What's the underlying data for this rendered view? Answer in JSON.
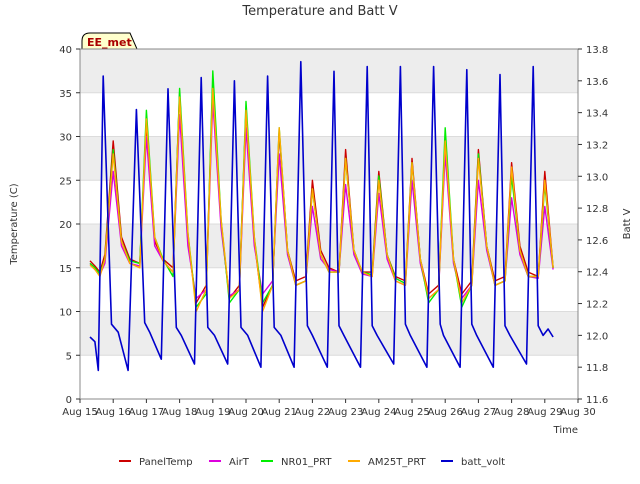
{
  "chart_data": {
    "type": "line",
    "title": "Temperature and Batt V",
    "station_label": "EE_met",
    "xlabel": "Time",
    "ylabel": "Temperature (C)",
    "y2label": "Batt V",
    "xlim": [
      15,
      30
    ],
    "ylim": [
      0,
      40
    ],
    "y2lim": [
      11.6,
      13.8
    ],
    "x_ticks": [
      15,
      16,
      17,
      18,
      19,
      20,
      21,
      22,
      23,
      24,
      25,
      26,
      27,
      28,
      29,
      30
    ],
    "x_tick_labels": [
      "Aug 15",
      "Aug 16",
      "Aug 17",
      "Aug 18",
      "Aug 19",
      "Aug 20",
      "Aug 21",
      "Aug 22",
      "Aug 23",
      "Aug 24",
      "Aug 25",
      "Aug 26",
      "Aug 27",
      "Aug 28",
      "Aug 29",
      "Aug 30"
    ],
    "y_ticks": [
      0,
      5,
      10,
      15,
      20,
      25,
      30,
      35,
      40
    ],
    "y2_ticks": [
      11.6,
      11.8,
      12.0,
      12.2,
      12.4,
      12.6,
      12.8,
      13.0,
      13.2,
      13.4,
      13.6,
      13.8
    ],
    "y2_tick_labels": [
      "11.6",
      "11.8",
      "12.0",
      "12.2",
      "12.4",
      "12.6",
      "12.8",
      "13.0",
      "13.2",
      "13.4",
      "13.6",
      "13.8"
    ],
    "legend_position": "bottom",
    "series": [
      {
        "name": "PanelTemp",
        "color": "#cc0000",
        "axis": "left",
        "x": [
          15.3,
          15.45,
          15.6,
          15.75,
          16.0,
          16.25,
          16.5,
          16.8,
          17.0,
          17.25,
          17.5,
          17.8,
          18.0,
          18.25,
          18.5,
          18.8,
          19.0,
          19.25,
          19.5,
          19.8,
          20.0,
          20.25,
          20.5,
          20.8,
          21.0,
          21.25,
          21.5,
          21.8,
          22.0,
          22.25,
          22.5,
          22.8,
          23.0,
          23.25,
          23.5,
          23.8,
          24.0,
          24.25,
          24.5,
          24.8,
          25.0,
          25.25,
          25.5,
          25.8,
          26.0,
          26.25,
          26.5,
          26.8,
          27.0,
          27.25,
          27.5,
          27.8,
          28.0,
          28.25,
          28.5,
          28.8,
          29.0,
          29.25
        ],
        "y": [
          15.8,
          15.2,
          14.5,
          16.5,
          29.5,
          18.5,
          16.0,
          15.5,
          31.5,
          18.0,
          16.0,
          15.0,
          35.0,
          18.0,
          11.0,
          13.0,
          36.0,
          20.0,
          11.5,
          13.0,
          33.0,
          18.0,
          10.5,
          13.0,
          30.5,
          17.0,
          13.5,
          14.0,
          25.0,
          17.0,
          15.0,
          14.5,
          28.5,
          17.0,
          14.5,
          14.5,
          26.0,
          16.5,
          14.0,
          13.5,
          27.5,
          16.0,
          12.0,
          13.0,
          29.0,
          16.0,
          12.0,
          13.5,
          28.5,
          17.5,
          13.5,
          14.0,
          27.0,
          17.5,
          14.5,
          14.0,
          26.0,
          15.0
        ]
      },
      {
        "name": "AirT",
        "color": "#dd00dd",
        "axis": "left",
        "x": [
          15.3,
          15.45,
          15.6,
          15.75,
          16.0,
          16.25,
          16.5,
          16.8,
          17.0,
          17.25,
          17.5,
          17.8,
          18.0,
          18.25,
          18.5,
          18.8,
          19.0,
          19.25,
          19.5,
          19.8,
          20.0,
          20.25,
          20.5,
          20.8,
          21.0,
          21.25,
          21.5,
          21.8,
          22.0,
          22.25,
          22.5,
          22.8,
          23.0,
          23.25,
          23.5,
          23.8,
          24.0,
          24.25,
          24.5,
          24.8,
          25.0,
          25.25,
          25.5,
          25.8,
          26.0,
          26.25,
          26.5,
          26.8,
          27.0,
          27.25,
          27.5,
          27.8,
          28.0,
          28.25,
          28.5,
          28.8,
          29.0,
          29.25
        ],
        "y": [
          15.5,
          14.8,
          14.2,
          15.5,
          26.0,
          17.5,
          15.5,
          15.2,
          30.0,
          17.5,
          15.8,
          14.5,
          32.5,
          17.5,
          11.5,
          12.5,
          34.0,
          19.5,
          11.8,
          12.5,
          31.0,
          17.5,
          12.0,
          13.5,
          28.0,
          16.5,
          13.0,
          13.5,
          22.0,
          16.0,
          14.8,
          14.5,
          24.5,
          16.5,
          14.3,
          14.0,
          23.5,
          16.0,
          13.5,
          13.0,
          25.0,
          15.5,
          11.5,
          12.5,
          28.0,
          15.5,
          11.5,
          13.0,
          25.0,
          17.0,
          13.0,
          13.5,
          23.0,
          16.5,
          14.0,
          13.8,
          22.0,
          14.8
        ]
      },
      {
        "name": "NR01_PRT",
        "color": "#00ee00",
        "axis": "left",
        "x": [
          15.3,
          15.45,
          15.6,
          15.75,
          16.0,
          16.25,
          16.5,
          16.8,
          17.0,
          17.25,
          17.5,
          17.8,
          18.0,
          18.25,
          18.5,
          18.8,
          19.0,
          19.25,
          19.5,
          19.8,
          20.0,
          20.25,
          20.5,
          20.8,
          21.0,
          21.25,
          21.5,
          21.8,
          22.0,
          22.25,
          22.5,
          22.8,
          23.0,
          23.25,
          23.5,
          23.8,
          24.0,
          24.25,
          24.5,
          24.8,
          25.0,
          25.25,
          25.5,
          25.8,
          26.0,
          26.25,
          26.5,
          26.8,
          27.0,
          27.25,
          27.5,
          27.8,
          28.0,
          28.25,
          28.5,
          28.8,
          29.0,
          29.25
        ],
        "y": [
          15.5,
          15.0,
          14.3,
          16.0,
          28.5,
          18.0,
          15.8,
          15.5,
          33.0,
          18.5,
          16.0,
          14.0,
          35.5,
          19.0,
          10.5,
          12.0,
          37.5,
          20.5,
          11.0,
          12.5,
          34.0,
          18.5,
          11.0,
          13.0,
          31.0,
          17.0,
          13.0,
          13.5,
          24.0,
          16.5,
          14.5,
          14.5,
          27.5,
          17.0,
          14.5,
          14.2,
          25.5,
          16.5,
          13.8,
          13.2,
          27.0,
          16.0,
          11.0,
          12.5,
          31.0,
          16.0,
          10.5,
          13.0,
          28.0,
          17.5,
          13.0,
          13.5,
          25.5,
          17.0,
          14.0,
          14.0,
          24.5,
          15.0
        ]
      },
      {
        "name": "AM25T_PRT",
        "color": "#ffaa00",
        "axis": "left",
        "x": [
          15.3,
          15.45,
          15.6,
          15.75,
          16.0,
          16.25,
          16.5,
          16.8,
          17.0,
          17.25,
          17.5,
          17.8,
          18.0,
          18.25,
          18.5,
          18.8,
          19.0,
          19.25,
          19.5,
          19.8,
          20.0,
          20.25,
          20.5,
          20.8,
          21.0,
          21.25,
          21.5,
          21.8,
          22.0,
          22.25,
          22.5,
          22.8,
          23.0,
          23.25,
          23.5,
          23.8,
          24.0,
          24.25,
          24.5,
          24.8,
          25.0,
          25.25,
          25.5,
          25.8,
          26.0,
          26.25,
          26.5,
          26.8,
          27.0,
          27.25,
          27.5,
          27.8,
          28.0,
          28.25,
          28.5,
          28.8,
          29.0,
          29.25
        ],
        "y": [
          15.3,
          14.8,
          14.0,
          16.0,
          28.0,
          18.0,
          15.5,
          15.0,
          32.0,
          18.5,
          15.8,
          14.5,
          34.5,
          19.0,
          10.0,
          12.5,
          35.5,
          20.5,
          11.5,
          12.5,
          33.0,
          18.5,
          10.0,
          13.0,
          31.0,
          17.0,
          13.0,
          13.5,
          24.0,
          16.5,
          14.5,
          14.5,
          27.5,
          17.0,
          14.5,
          14.0,
          25.0,
          16.5,
          13.5,
          13.0,
          27.0,
          16.0,
          11.5,
          12.5,
          29.5,
          16.0,
          11.0,
          13.0,
          27.5,
          17.5,
          13.0,
          13.5,
          26.5,
          17.0,
          14.0,
          14.0,
          25.0,
          15.0
        ]
      },
      {
        "name": "batt_volt",
        "color": "#0000cc",
        "axis": "right",
        "x": [
          15.3,
          15.45,
          15.55,
          15.7,
          15.95,
          16.15,
          16.45,
          16.7,
          16.95,
          17.1,
          17.45,
          17.65,
          17.9,
          18.05,
          18.45,
          18.65,
          18.85,
          19.05,
          19.45,
          19.65,
          19.85,
          20.05,
          20.45,
          20.65,
          20.85,
          21.05,
          21.45,
          21.65,
          21.85,
          22.0,
          22.45,
          22.65,
          22.8,
          22.95,
          23.45,
          23.65,
          23.8,
          23.95,
          24.45,
          24.65,
          24.8,
          24.95,
          25.45,
          25.65,
          25.85,
          25.95,
          26.45,
          26.65,
          26.8,
          26.95,
          27.45,
          27.65,
          27.8,
          27.95,
          28.45,
          28.65,
          28.8,
          28.95,
          29.1,
          29.25
        ],
        "y": [
          11.99,
          11.96,
          11.78,
          13.63,
          12.07,
          12.02,
          11.78,
          13.42,
          12.08,
          12.02,
          11.85,
          13.55,
          12.05,
          12.0,
          11.82,
          13.62,
          12.05,
          12.0,
          11.82,
          13.6,
          12.05,
          12.0,
          11.8,
          13.63,
          12.05,
          12.0,
          11.8,
          13.72,
          12.06,
          12.0,
          11.8,
          13.66,
          12.06,
          12.0,
          11.8,
          13.69,
          12.06,
          12.0,
          11.82,
          13.69,
          12.07,
          12.0,
          11.8,
          13.69,
          12.07,
          12.0,
          11.8,
          13.67,
          12.07,
          12.0,
          11.8,
          13.64,
          12.06,
          12.0,
          11.82,
          13.69,
          12.06,
          12.0,
          12.04,
          11.99
        ]
      }
    ]
  }
}
